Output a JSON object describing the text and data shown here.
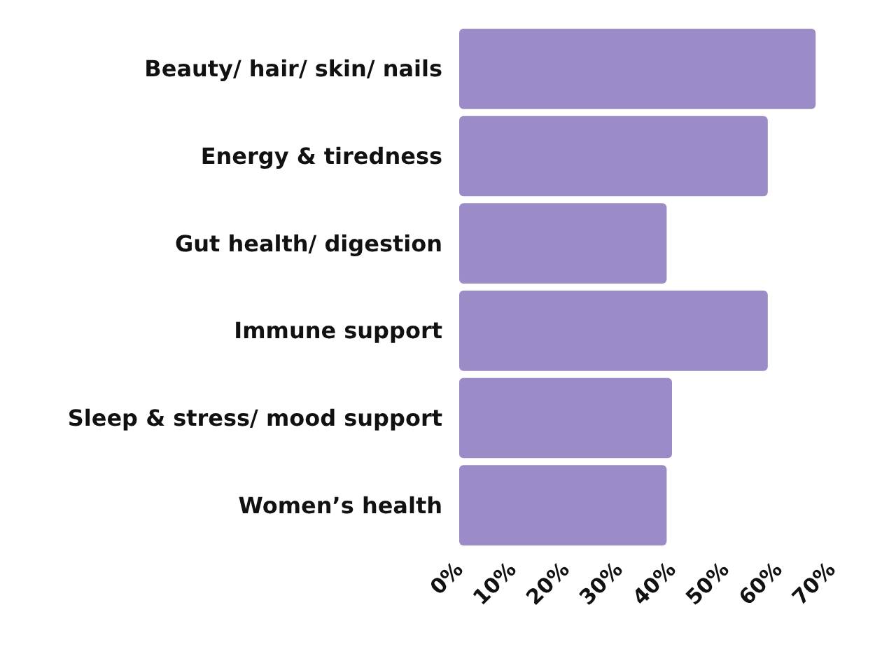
{
  "chart_data": {
    "type": "bar",
    "orientation": "horizontal",
    "categories": [
      "Beauty/ hair/ skin/ nails",
      "Energy & tiredness",
      "Gut health/ digestion",
      "Immune support",
      "Sleep & stress/ mood support",
      "Women’s health"
    ],
    "values": [
      67,
      58,
      39,
      58,
      40,
      39
    ],
    "color": "#9b8bc6",
    "xlim": [
      0,
      70
    ],
    "xticks": [
      {
        "value": 0,
        "label": "0%"
      },
      {
        "value": 10,
        "label": "10%"
      },
      {
        "value": 20,
        "label": "20%"
      },
      {
        "value": 30,
        "label": "30%"
      },
      {
        "value": 40,
        "label": "40%"
      },
      {
        "value": 50,
        "label": "50%"
      },
      {
        "value": 60,
        "label": "60%"
      },
      {
        "value": 70,
        "label": "70%"
      }
    ]
  }
}
